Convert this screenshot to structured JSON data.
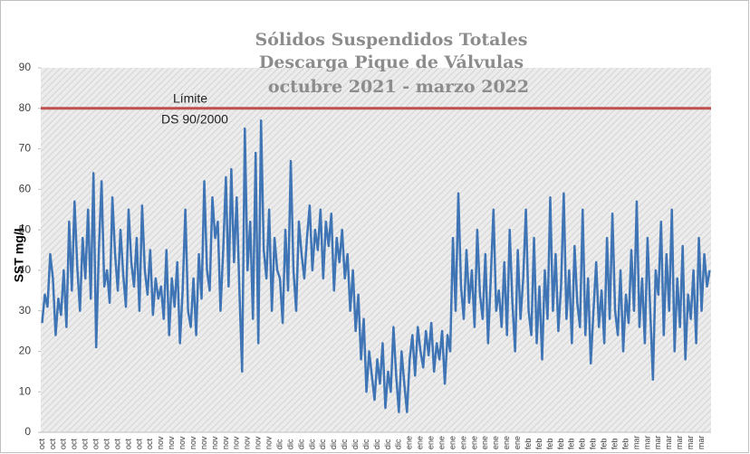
{
  "chart_data": {
    "type": "line",
    "title": [
      "Sólidos Suspendidos Totales",
      "Descarga Pique de Válvulas",
      "octubre 2021 - marzo 2022"
    ],
    "ylabel": "SST mg/L",
    "ylim": [
      0,
      90
    ],
    "yticks": [
      0,
      10,
      20,
      30,
      40,
      50,
      60,
      70,
      80,
      90
    ],
    "limit": {
      "value": 80,
      "label": [
        "Límite",
        "DS 90/2000"
      ],
      "color": "#c0504d"
    },
    "categories": [
      "oct",
      null,
      null,
      null,
      "oct",
      null,
      null,
      null,
      "oct",
      null,
      null,
      null,
      "oct",
      null,
      null,
      null,
      "oct",
      null,
      null,
      null,
      "oct",
      null,
      null,
      null,
      "oct",
      null,
      null,
      null,
      "oct",
      null,
      null,
      null,
      "oct",
      null,
      null,
      null,
      "oct",
      null,
      null,
      null,
      "oct",
      null,
      null,
      null,
      "nov",
      null,
      null,
      null,
      "nov",
      null,
      null,
      null,
      "nov",
      null,
      null,
      null,
      "nov",
      null,
      null,
      null,
      "nov",
      null,
      null,
      null,
      "nov",
      null,
      null,
      null,
      "nov",
      null,
      null,
      null,
      "nov",
      null,
      null,
      null,
      "nov",
      null,
      null,
      null,
      "nov",
      null,
      null,
      null,
      "nov",
      null,
      null,
      null,
      "dic",
      null,
      null,
      null,
      "dic",
      null,
      null,
      null,
      "dic",
      null,
      null,
      null,
      "dic",
      null,
      null,
      null,
      "dic",
      null,
      null,
      null,
      "dic",
      null,
      null,
      null,
      "dic",
      null,
      null,
      null,
      "dic",
      null,
      null,
      null,
      "dic",
      null,
      null,
      null,
      "dic",
      null,
      null,
      null,
      "dic",
      null,
      null,
      null,
      "dic",
      null,
      null,
      null,
      "ene",
      null,
      null,
      null,
      "ene",
      null,
      null,
      null,
      "ene",
      null,
      null,
      null,
      "ene",
      null,
      null,
      null,
      "ene",
      null,
      null,
      null,
      "ene",
      null,
      null,
      null,
      "ene",
      null,
      null,
      null,
      "ene",
      null,
      null,
      null,
      "ene",
      null,
      null,
      null,
      "ene",
      null,
      null,
      null,
      "ene",
      null,
      null,
      null,
      "feb",
      null,
      null,
      null,
      "feb",
      null,
      null,
      null,
      "feb",
      null,
      null,
      null,
      "feb",
      null,
      null,
      null,
      "feb",
      null,
      null,
      null,
      "feb",
      null,
      null,
      null,
      "feb",
      null,
      null,
      null,
      "feb",
      null,
      null,
      null,
      "feb",
      null,
      null,
      null,
      "feb",
      null,
      null,
      null,
      "mar",
      null,
      null,
      null,
      "mar",
      null,
      null,
      null,
      "mar",
      null,
      null,
      null,
      "mar",
      null,
      null,
      null,
      "mar",
      null,
      null,
      null,
      "mar",
      null,
      null,
      null,
      "mar",
      null,
      null,
      null
    ],
    "series": [
      {
        "color": "#3f74b5",
        "values": [
          27,
          34,
          31,
          44,
          38,
          24,
          33,
          29,
          40,
          26,
          52,
          35,
          57,
          41,
          30,
          48,
          38,
          55,
          33,
          64,
          21,
          45,
          62,
          36,
          40,
          32,
          58,
          44,
          35,
          50,
          39,
          31,
          55,
          42,
          36,
          48,
          30,
          56,
          40,
          34,
          45,
          29,
          38,
          33,
          36,
          28,
          45,
          24,
          38,
          31,
          42,
          22,
          35,
          55,
          30,
          26,
          38,
          24,
          44,
          33,
          62,
          40,
          35,
          58,
          48,
          52,
          30,
          45,
          63,
          36,
          65,
          42,
          58,
          35,
          15,
          75,
          40,
          52,
          28,
          69,
          22,
          77,
          45,
          38,
          55,
          30,
          48,
          40,
          38,
          27,
          50,
          35,
          67,
          40,
          30,
          52,
          44,
          38,
          48,
          56,
          40,
          50,
          45,
          55,
          38,
          52,
          46,
          54,
          35,
          48,
          42,
          50,
          38,
          44,
          30,
          40,
          25,
          34,
          18,
          28,
          10,
          20,
          14,
          8,
          18,
          12,
          22,
          6,
          15,
          10,
          26,
          14,
          5,
          20,
          12,
          5,
          18,
          24,
          14,
          26,
          20,
          16,
          25,
          19,
          27,
          15,
          22,
          18,
          25,
          12,
          24,
          20,
          48,
          30,
          59,
          36,
          28,
          45,
          32,
          40,
          26,
          50,
          34,
          28,
          44,
          22,
          38,
          55,
          30,
          35,
          26,
          42,
          24,
          50,
          32,
          20,
          45,
          28,
          38,
          55,
          30,
          24,
          48,
          22,
          36,
          18,
          40,
          28,
          58,
          30,
          44,
          25,
          36,
          59,
          28,
          40,
          22,
          46,
          32,
          26,
          55,
          24,
          38,
          17,
          30,
          42,
          26,
          35,
          22,
          48,
          28,
          54,
          30,
          24,
          40,
          20,
          34,
          27,
          45,
          30,
          57,
          26,
          38,
          22,
          48,
          30,
          13,
          40,
          34,
          52,
          24,
          44,
          30,
          55,
          20,
          38,
          26,
          46,
          18,
          34,
          28,
          40,
          22,
          48,
          30,
          44,
          36,
          40
        ]
      }
    ]
  }
}
